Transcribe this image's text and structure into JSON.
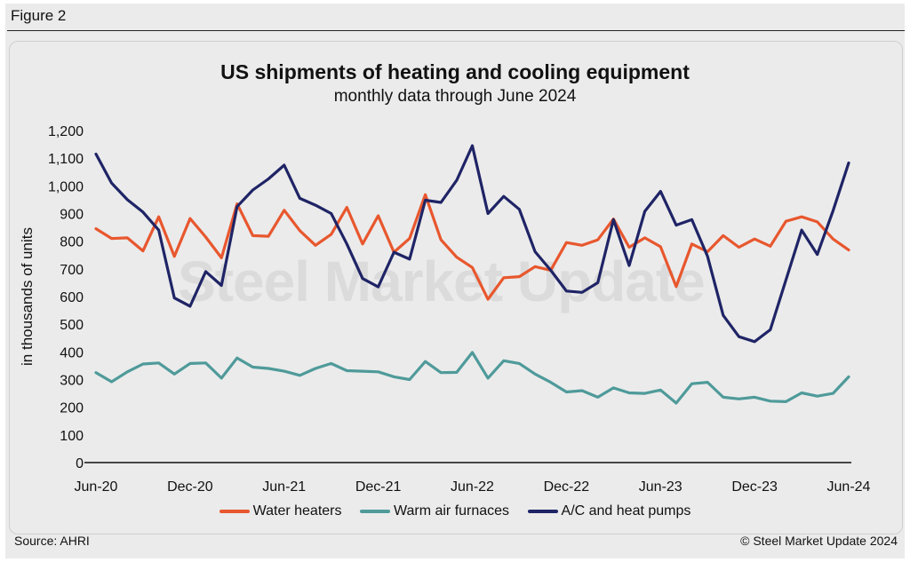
{
  "figure_label": "Figure 2",
  "watermark": "Steel Market Update",
  "source": "Source: AHRI",
  "copyright": "© Steel Market Update 2024",
  "colors": {
    "water_heaters": "#e8572e",
    "warm_air_furnaces": "#4f9a9a",
    "ac_heat_pumps": "#1f2466"
  },
  "chart_data": {
    "type": "line",
    "title": "US shipments of heating and cooling equipment",
    "subtitle": "monthly data through June 2024",
    "xlabel": "",
    "ylabel": "in thousands of units",
    "ylim": [
      0,
      1200
    ],
    "yticks": [
      "0",
      "100",
      "200",
      "300",
      "400",
      "500",
      "600",
      "700",
      "800",
      "900",
      "1,000",
      "1,100",
      "1,200"
    ],
    "xticks": [
      {
        "index": 0,
        "label": "Jun-20"
      },
      {
        "index": 6,
        "label": "Dec-20"
      },
      {
        "index": 12,
        "label": "Jun-21"
      },
      {
        "index": 18,
        "label": "Dec-21"
      },
      {
        "index": 24,
        "label": "Jun-22"
      },
      {
        "index": 30,
        "label": "Dec-22"
      },
      {
        "index": 36,
        "label": "Jun-23"
      },
      {
        "index": 42,
        "label": "Dec-23"
      },
      {
        "index": 48,
        "label": "Jun-24"
      }
    ],
    "series": [
      {
        "name": "Water heaters",
        "color_key": "water_heaters",
        "values": [
          845,
          810,
          812,
          765,
          888,
          745,
          882,
          815,
          740,
          935,
          820,
          818,
          912,
          838,
          785,
          825,
          922,
          790,
          892,
          760,
          810,
          968,
          805,
          742,
          705,
          590,
          668,
          672,
          708,
          695,
          795,
          785,
          805,
          880,
          778,
          812,
          780,
          636,
          790,
          762,
          820,
          778,
          808,
          782,
          872,
          888,
          870,
          808,
          768
        ]
      },
      {
        "name": "Warm air furnaces",
        "color_key": "warm_air_furnaces",
        "values": [
          325,
          292,
          328,
          356,
          360,
          320,
          358,
          360,
          305,
          378,
          345,
          340,
          330,
          315,
          340,
          358,
          332,
          330,
          328,
          310,
          300,
          365,
          325,
          326,
          398,
          305,
          368,
          358,
          320,
          290,
          255,
          260,
          236,
          270,
          252,
          250,
          262,
          215,
          285,
          290,
          236,
          230,
          236,
          222,
          220,
          252,
          240,
          250,
          310
        ]
      },
      {
        "name": "A/C and heat pumps",
        "color_key": "ac_heat_pumps",
        "values": [
          1115,
          1010,
          950,
          905,
          840,
          595,
          565,
          690,
          640,
          925,
          985,
          1025,
          1075,
          955,
          930,
          900,
          790,
          665,
          635,
          760,
          735,
          948,
          940,
          1020,
          1145,
          900,
          962,
          915,
          762,
          695,
          620,
          615,
          650,
          878,
          712,
          908,
          980,
          858,
          878,
          745,
          532,
          455,
          437,
          480,
          660,
          840,
          752,
          910,
          1083
        ]
      }
    ]
  }
}
